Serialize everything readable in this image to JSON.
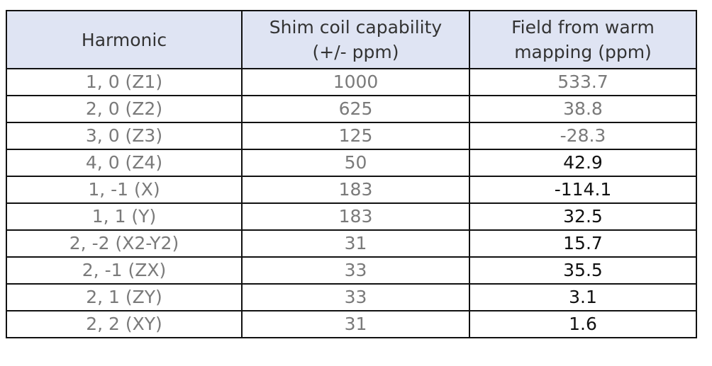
{
  "table": {
    "headers": [
      {
        "lines": [
          "Harmonic"
        ]
      },
      {
        "lines": [
          "Shim coil capability",
          "(+/- ppm)"
        ]
      },
      {
        "lines": [
          "Field from warm",
          "mapping (ppm)"
        ]
      }
    ],
    "rows": [
      {
        "harmonic": "1, 0 (Z1)",
        "capability": "1000",
        "field": "533.7",
        "field_dark": false
      },
      {
        "harmonic": "2, 0 (Z2)",
        "capability": "625",
        "field": "38.8",
        "field_dark": false
      },
      {
        "harmonic": "3, 0 (Z3)",
        "capability": "125",
        "field": "-28.3",
        "field_dark": false
      },
      {
        "harmonic": "4, 0 (Z4)",
        "capability": "50",
        "field": "42.9",
        "field_dark": true
      },
      {
        "harmonic": "1, -1 (X)",
        "capability": "183",
        "field": "-114.1",
        "field_dark": true
      },
      {
        "harmonic": "1, 1 (Y)",
        "capability": "183",
        "field": "32.5",
        "field_dark": true
      },
      {
        "harmonic": "2, -2 (X2-Y2)",
        "capability": "31",
        "field": "15.7",
        "field_dark": true
      },
      {
        "harmonic": "2, -1 (ZX)",
        "capability": "33",
        "field": "35.5",
        "field_dark": true
      },
      {
        "harmonic": "2, 1 (ZY)",
        "capability": "33",
        "field": "3.1",
        "field_dark": true
      },
      {
        "harmonic": "2, 2 (XY)",
        "capability": "31",
        "field": "1.6",
        "field_dark": true
      }
    ]
  },
  "colors": {
    "header_bg": "#dfe4f3",
    "header_text": "#333333",
    "muted_text": "#7a7a7a",
    "dark_text": "#111111",
    "border": "#111111"
  }
}
